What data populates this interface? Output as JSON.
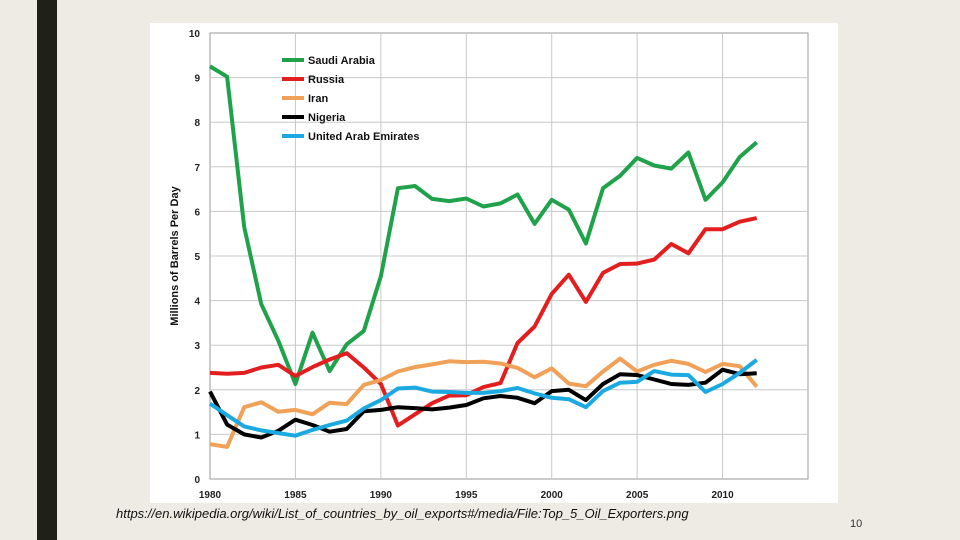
{
  "slide": {
    "source_text": "https://en.wikipedia.org/wiki/List_of_countries_by_oil_exports#/media/File:Top_5_Oil_Exporters.png",
    "page_number": "10",
    "colors": {
      "background": "#eeebe4",
      "accent_bar": "#1f2017",
      "chart_bg": "#ffffff"
    }
  },
  "chart_data": {
    "type": "line",
    "title": "",
    "xlabel": "",
    "ylabel": "Millions of Barrels Per Day",
    "xlim": [
      1980,
      2015
    ],
    "ylim": [
      0,
      10
    ],
    "x_ticks": [
      1980,
      1985,
      1990,
      1995,
      2000,
      2005,
      2010
    ],
    "y_ticks": [
      0,
      1,
      2,
      3,
      4,
      5,
      6,
      7,
      8,
      9,
      10
    ],
    "grid": true,
    "legend_position": "top-left",
    "x": [
      1980,
      1981,
      1982,
      1983,
      1984,
      1985,
      1986,
      1987,
      1988,
      1989,
      1990,
      1991,
      1992,
      1993,
      1994,
      1995,
      1996,
      1997,
      1998,
      1999,
      2000,
      2001,
      2002,
      2003,
      2004,
      2005,
      2006,
      2007,
      2008,
      2009,
      2010,
      2011,
      2012
    ],
    "series": [
      {
        "name": "Saudi Arabia",
        "color": "#1fa24a",
        "values": [
          9.25,
          9.02,
          5.65,
          3.92,
          3.1,
          2.13,
          3.28,
          2.42,
          3.02,
          3.32,
          4.55,
          6.52,
          6.57,
          6.28,
          6.23,
          6.29,
          6.11,
          6.18,
          6.38,
          5.72,
          6.26,
          6.04,
          5.28,
          6.52,
          6.8,
          7.2,
          7.03,
          6.96,
          7.32,
          6.26,
          6.65,
          7.22,
          7.55
        ]
      },
      {
        "name": "Russia",
        "color": "#e31e1e",
        "values": [
          2.38,
          2.36,
          2.38,
          2.5,
          2.56,
          2.31,
          2.51,
          2.68,
          2.82,
          2.5,
          2.13,
          1.2,
          1.45,
          1.7,
          1.87,
          1.88,
          2.06,
          2.15,
          3.05,
          3.42,
          4.15,
          4.58,
          3.97,
          4.62,
          4.82,
          4.83,
          4.92,
          5.27,
          5.06,
          5.6,
          5.6,
          5.77,
          5.85
        ]
      },
      {
        "name": "Iran",
        "color": "#f0a057",
        "values": [
          0.78,
          0.72,
          1.61,
          1.72,
          1.51,
          1.55,
          1.45,
          1.71,
          1.68,
          2.11,
          2.22,
          2.41,
          2.51,
          2.57,
          2.64,
          2.62,
          2.63,
          2.59,
          2.49,
          2.28,
          2.48,
          2.14,
          2.08,
          2.41,
          2.7,
          2.41,
          2.56,
          2.65,
          2.58,
          2.4,
          2.58,
          2.53,
          2.07
        ]
      },
      {
        "name": "Nigeria",
        "color": "#000000",
        "values": [
          1.96,
          1.22,
          1.0,
          0.93,
          1.08,
          1.33,
          1.21,
          1.06,
          1.12,
          1.52,
          1.55,
          1.61,
          1.59,
          1.56,
          1.6,
          1.66,
          1.81,
          1.86,
          1.82,
          1.7,
          1.97,
          2.0,
          1.77,
          2.13,
          2.35,
          2.33,
          2.23,
          2.13,
          2.11,
          2.16,
          2.45,
          2.35,
          2.37
        ]
      },
      {
        "name": "United Arab Emirates",
        "color": "#1ba9e1",
        "values": [
          1.69,
          1.43,
          1.18,
          1.09,
          1.03,
          0.97,
          1.1,
          1.21,
          1.31,
          1.58,
          1.77,
          2.03,
          2.05,
          1.96,
          1.95,
          1.93,
          1.93,
          1.97,
          2.04,
          1.92,
          1.82,
          1.79,
          1.61,
          1.97,
          2.16,
          2.18,
          2.42,
          2.34,
          2.33,
          1.95,
          2.13,
          2.38,
          2.67
        ]
      }
    ]
  }
}
